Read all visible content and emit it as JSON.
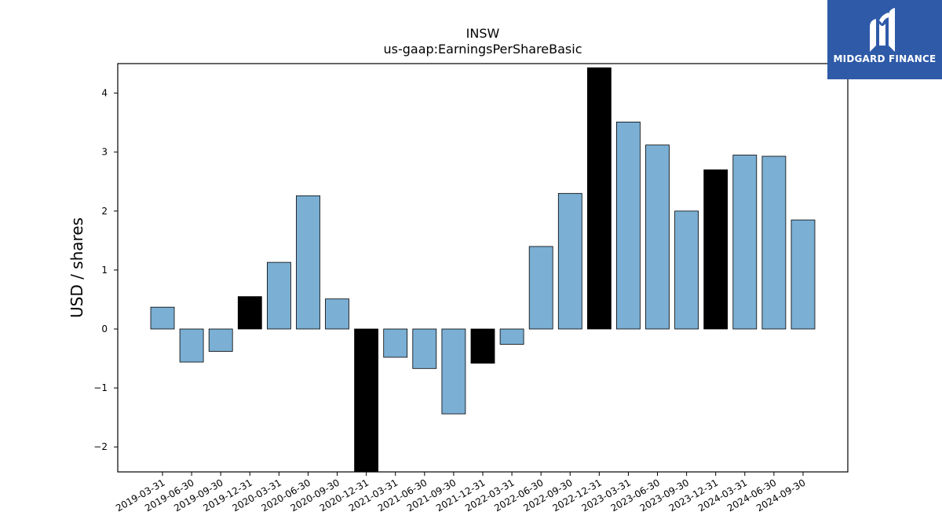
{
  "brand": {
    "name": "MIDGARD FINANCE",
    "color": "#2e5aa8"
  },
  "chart_data": {
    "type": "bar",
    "title": "INSW",
    "subtitle": "us-gaap:EarningsPerShareBasic",
    "xlabel": "",
    "ylabel": "USD / shares",
    "ylim": [
      -2.42,
      4.47
    ],
    "yticks": [
      -2,
      -1,
      0,
      1,
      2,
      3,
      4
    ],
    "grid": false,
    "colors": {
      "quarter": "#7bafd4",
      "fiscal_year_end": "#000000"
    },
    "categories": [
      "2019-03-31",
      "2019-06-30",
      "2019-09-30",
      "2019-12-31",
      "2020-03-31",
      "2020-06-30",
      "2020-09-30",
      "2020-12-31",
      "2021-03-31",
      "2021-06-30",
      "2021-09-30",
      "2021-12-31",
      "2022-03-31",
      "2022-06-30",
      "2022-09-30",
      "2022-12-31",
      "2023-03-31",
      "2023-06-30",
      "2023-09-30",
      "2023-12-31",
      "2024-03-31",
      "2024-06-30",
      "2024-09-30"
    ],
    "values": [
      0.37,
      -0.56,
      -0.38,
      0.55,
      1.13,
      2.26,
      0.51,
      -2.45,
      -0.48,
      -0.67,
      -1.44,
      -0.58,
      -0.26,
      1.4,
      2.3,
      4.43,
      3.51,
      3.12,
      2.0,
      2.7,
      2.95,
      2.93,
      1.85
    ],
    "highlight": [
      false,
      false,
      false,
      true,
      false,
      false,
      false,
      true,
      false,
      false,
      false,
      true,
      false,
      false,
      false,
      true,
      false,
      false,
      false,
      true,
      false,
      false,
      false
    ]
  }
}
